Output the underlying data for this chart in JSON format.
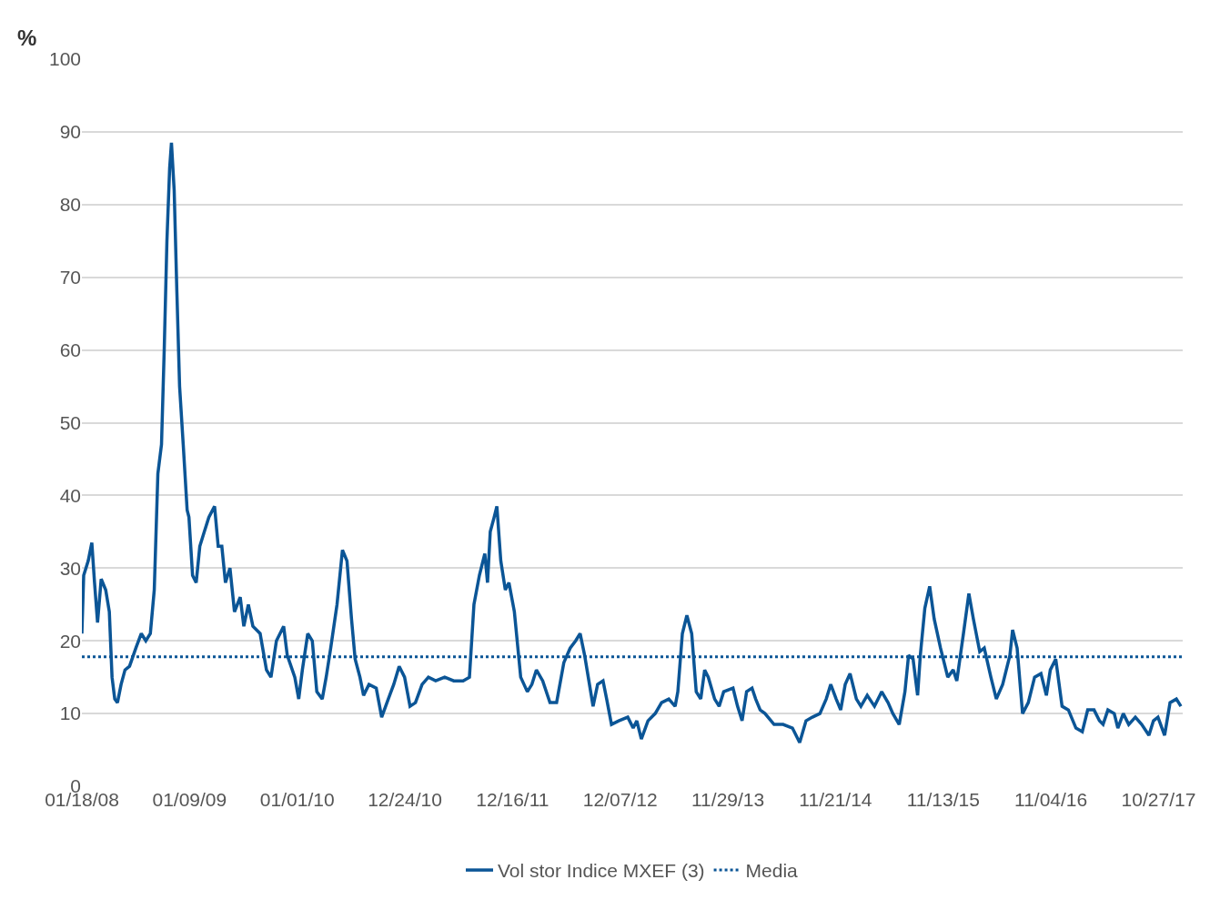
{
  "chart_data": {
    "type": "line",
    "ylabel": "%",
    "xlim": [
      "2008-01-18",
      "2018-01-15"
    ],
    "xticks": [
      {
        "value": "2008-01-18",
        "label": "01/18/08"
      },
      {
        "value": "2009-01-09",
        "label": "01/09/09"
      },
      {
        "value": "2010-01-01",
        "label": "01/01/10"
      },
      {
        "value": "2010-12-24",
        "label": "12/24/10"
      },
      {
        "value": "2011-12-16",
        "label": "12/16/11"
      },
      {
        "value": "2012-12-07",
        "label": "12/07/12"
      },
      {
        "value": "2013-11-29",
        "label": "11/29/13"
      },
      {
        "value": "2014-11-21",
        "label": "11/21/14"
      },
      {
        "value": "2015-11-13",
        "label": "11/13/15"
      },
      {
        "value": "2016-11-04",
        "label": "11/04/16"
      },
      {
        "value": "2017-10-27",
        "label": "10/27/17"
      }
    ],
    "ylim": [
      0,
      100
    ],
    "yticks": [
      0,
      10,
      20,
      30,
      40,
      50,
      60,
      70,
      80,
      90,
      100
    ],
    "grid": "y",
    "legend": "bottom",
    "line_style": "solid",
    "marker": "none",
    "x": [
      "2008-01-18",
      "2008-01-24",
      "2008-02-08",
      "2008-02-20",
      "2008-02-29",
      "2008-03-10",
      "2008-03-22",
      "2008-04-06",
      "2008-04-18",
      "2008-04-27",
      "2008-05-06",
      "2008-05-15",
      "2008-05-27",
      "2008-06-09",
      "2008-06-24",
      "2008-07-15",
      "2008-08-02",
      "2008-08-17",
      "2008-09-01",
      "2008-09-14",
      "2008-09-26",
      "2008-10-08",
      "2008-10-17",
      "2008-10-26",
      "2008-11-04",
      "2008-11-10",
      "2008-11-19",
      "2008-11-28",
      "2008-12-07",
      "2008-12-19",
      "2009-01-01",
      "2009-01-07",
      "2009-01-19",
      "2009-01-31",
      "2009-02-12",
      "2009-02-27",
      "2009-03-14",
      "2009-04-02",
      "2009-04-14",
      "2009-04-26",
      "2009-05-08",
      "2009-05-23",
      "2009-06-07",
      "2009-06-26",
      "2009-07-08",
      "2009-07-23",
      "2009-08-07",
      "2009-08-31",
      "2009-09-21",
      "2009-10-06",
      "2009-10-24",
      "2009-11-17",
      "2009-11-29",
      "2009-12-24",
      "2010-01-06",
      "2010-01-18",
      "2010-02-05",
      "2010-02-20",
      "2010-03-07",
      "2010-03-25",
      "2010-04-07",
      "2010-04-22",
      "2010-05-13",
      "2010-05-31",
      "2010-06-15",
      "2010-06-30",
      "2010-07-12",
      "2010-07-28",
      "2010-08-09",
      "2010-08-27",
      "2010-09-20",
      "2010-10-08",
      "2010-10-30",
      "2010-11-17",
      "2010-12-05",
      "2010-12-23",
      "2011-01-10",
      "2011-01-28",
      "2011-02-19",
      "2011-03-12",
      "2011-04-05",
      "2011-05-05",
      "2011-06-04",
      "2011-07-05",
      "2011-07-26",
      "2011-08-10",
      "2011-08-28",
      "2011-09-15",
      "2011-09-24",
      "2011-10-03",
      "2011-10-16",
      "2011-10-25",
      "2011-11-07",
      "2011-11-22",
      "2011-12-04",
      "2011-12-22",
      "2012-01-12",
      "2012-02-03",
      "2012-02-18",
      "2012-03-04",
      "2012-03-25",
      "2012-04-18",
      "2012-05-10",
      "2012-06-03",
      "2012-06-24",
      "2012-07-12",
      "2012-07-27",
      "2012-08-11",
      "2012-08-27",
      "2012-09-08",
      "2012-09-23",
      "2012-10-11",
      "2012-10-23",
      "2012-11-08",
      "2012-12-02",
      "2013-01-01",
      "2013-01-19",
      "2013-01-31",
      "2013-02-15",
      "2013-03-09",
      "2013-04-02",
      "2013-04-23",
      "2013-05-17",
      "2013-06-07",
      "2013-06-16",
      "2013-07-01",
      "2013-07-16",
      "2013-08-01",
      "2013-08-16",
      "2013-08-31",
      "2013-09-13",
      "2013-09-25",
      "2013-10-16",
      "2013-10-31",
      "2013-11-15",
      "2013-12-16",
      "2013-12-31",
      "2014-01-15",
      "2014-01-30",
      "2014-02-17",
      "2014-03-01",
      "2014-03-16",
      "2014-04-01",
      "2014-05-01",
      "2014-05-31",
      "2014-07-01",
      "2014-07-25",
      "2014-08-15",
      "2014-09-05",
      "2014-09-30",
      "2014-10-21",
      "2014-11-05",
      "2014-11-23",
      "2014-12-08",
      "2014-12-23",
      "2015-01-08",
      "2015-01-29",
      "2015-02-13",
      "2015-03-06",
      "2015-03-30",
      "2015-04-23",
      "2015-05-14",
      "2015-05-30",
      "2015-06-20",
      "2015-07-09",
      "2015-07-21",
      "2015-08-05",
      "2015-08-20",
      "2015-08-29",
      "2015-09-13",
      "2015-09-29",
      "2015-10-14",
      "2015-11-04",
      "2015-11-28",
      "2015-12-16",
      "2015-12-28",
      "2016-01-19",
      "2016-02-06",
      "2016-02-21",
      "2016-03-13",
      "2016-03-28",
      "2016-04-19",
      "2016-05-07",
      "2016-05-28",
      "2016-06-21",
      "2016-06-30",
      "2016-07-15",
      "2016-08-02",
      "2016-08-21",
      "2016-09-11",
      "2016-10-02",
      "2016-10-20",
      "2016-11-02",
      "2016-11-20",
      "2016-12-11",
      "2017-01-01",
      "2017-01-26",
      "2017-02-16",
      "2017-03-06",
      "2017-03-27",
      "2017-04-14",
      "2017-04-26",
      "2017-05-12",
      "2017-06-02",
      "2017-06-14",
      "2017-07-02",
      "2017-07-20",
      "2017-08-11",
      "2017-09-01",
      "2017-09-25",
      "2017-10-10",
      "2017-10-25",
      "2017-11-16",
      "2017-12-04",
      "2017-12-25",
      "2018-01-09"
    ],
    "series": [
      {
        "name": "Vol stor Indice MXEF (3)",
        "color": "#0b5596",
        "values": [
          21,
          29,
          31,
          33.5,
          28,
          22.5,
          28.5,
          27,
          24,
          15,
          12,
          11.5,
          14,
          16,
          16.5,
          19,
          21,
          20,
          21,
          27,
          43,
          47,
          60,
          75,
          85,
          88.5,
          82,
          68,
          55,
          47,
          38,
          37,
          29,
          28,
          33,
          35,
          37,
          38.5,
          33,
          33,
          28,
          30,
          24,
          26,
          22,
          25,
          22,
          21,
          16,
          15,
          20,
          22,
          18,
          15,
          12,
          16,
          21,
          20,
          13,
          12,
          15,
          19,
          25,
          32.5,
          31,
          23,
          17.5,
          15,
          12.5,
          14,
          13.5,
          9.5,
          12,
          14,
          16.5,
          15,
          11,
          11.5,
          14,
          15,
          14.5,
          15,
          14.5,
          14.5,
          15,
          25,
          29,
          32,
          28,
          35,
          37,
          38.5,
          31,
          27,
          28,
          24,
          15,
          13,
          14,
          16,
          14.5,
          11.5,
          11.5,
          17,
          19,
          20,
          21,
          18,
          14,
          11,
          14,
          14.5,
          12,
          8.5,
          9,
          9.5,
          8,
          9,
          6.5,
          9,
          10,
          11.5,
          12,
          11,
          13,
          21,
          23.5,
          21,
          13,
          12,
          16,
          15,
          12,
          11,
          13,
          13.5,
          11,
          9,
          13,
          13.5,
          12,
          10.5,
          10,
          8.5,
          8.5,
          8,
          6,
          9,
          9.5,
          10,
          12,
          14,
          12,
          10.5,
          14,
          15.5,
          12,
          11,
          12.5,
          11,
          13,
          11.5,
          10,
          8.5,
          13,
          18,
          17.5,
          12.5,
          18,
          24.5,
          27.5,
          23,
          19,
          15,
          16,
          14.5,
          21,
          26.5,
          23,
          18.5,
          19,
          15,
          12,
          14,
          18,
          21.5,
          19,
          10,
          11.5,
          15,
          15.5,
          12.5,
          16,
          17.5,
          11,
          10.5,
          8,
          7.5,
          10.5,
          10.5,
          9,
          8.5,
          10.5,
          10,
          8,
          10,
          8.5,
          9.5,
          8.5,
          7,
          9,
          9.5,
          7,
          11.5,
          12,
          11
        ]
      }
    ],
    "ref_lines": [
      {
        "axis": "y",
        "value": 17.8,
        "label": "Media",
        "color": "#0b5596",
        "line_style": "dotted"
      }
    ]
  }
}
